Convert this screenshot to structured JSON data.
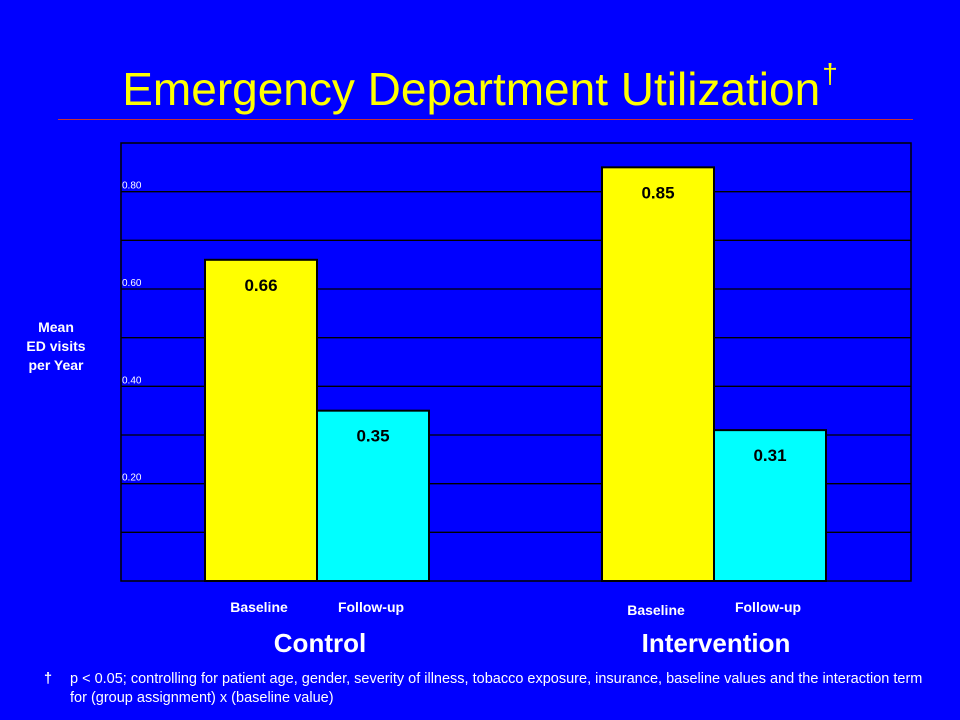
{
  "title": {
    "text": "Emergency Department Utilization",
    "marker": "†"
  },
  "footnote": {
    "marker": "†",
    "text": "p < 0.05; controlling for patient age, gender, severity of illness, tobacco exposure, insurance, baseline values and the interaction term for (group assignment) x (baseline value)"
  },
  "colors": {
    "background": "#0000ff",
    "title": "#ffff00",
    "baseline_bar": "#ffff00",
    "followup_bar": "#00ffff",
    "divider": "#c83232",
    "gridline": "#000000"
  },
  "chart_data": {
    "type": "bar",
    "ylabel": "Mean ED visits per Year",
    "ylabel_lines": [
      "Mean",
      "ED visits",
      "per Year"
    ],
    "ylim": [
      0,
      0.9
    ],
    "grid": true,
    "y_ticks": [
      0.2,
      0.4,
      0.6,
      0.8
    ],
    "y_tick_labels": [
      "0.20",
      "0.40",
      "0.60",
      "0.80"
    ],
    "groups": [
      {
        "name": "Control",
        "bars": [
          {
            "category": "Baseline",
            "value": 0.66,
            "label": "0.66"
          },
          {
            "category": "Follow-up",
            "value": 0.35,
            "label": "0.35"
          }
        ]
      },
      {
        "name": "Intervention",
        "bars": [
          {
            "category": "Baseline",
            "value": 0.85,
            "label": "0.85"
          },
          {
            "category": "Follow-up",
            "value": 0.31,
            "label": "0.31"
          }
        ]
      }
    ]
  }
}
